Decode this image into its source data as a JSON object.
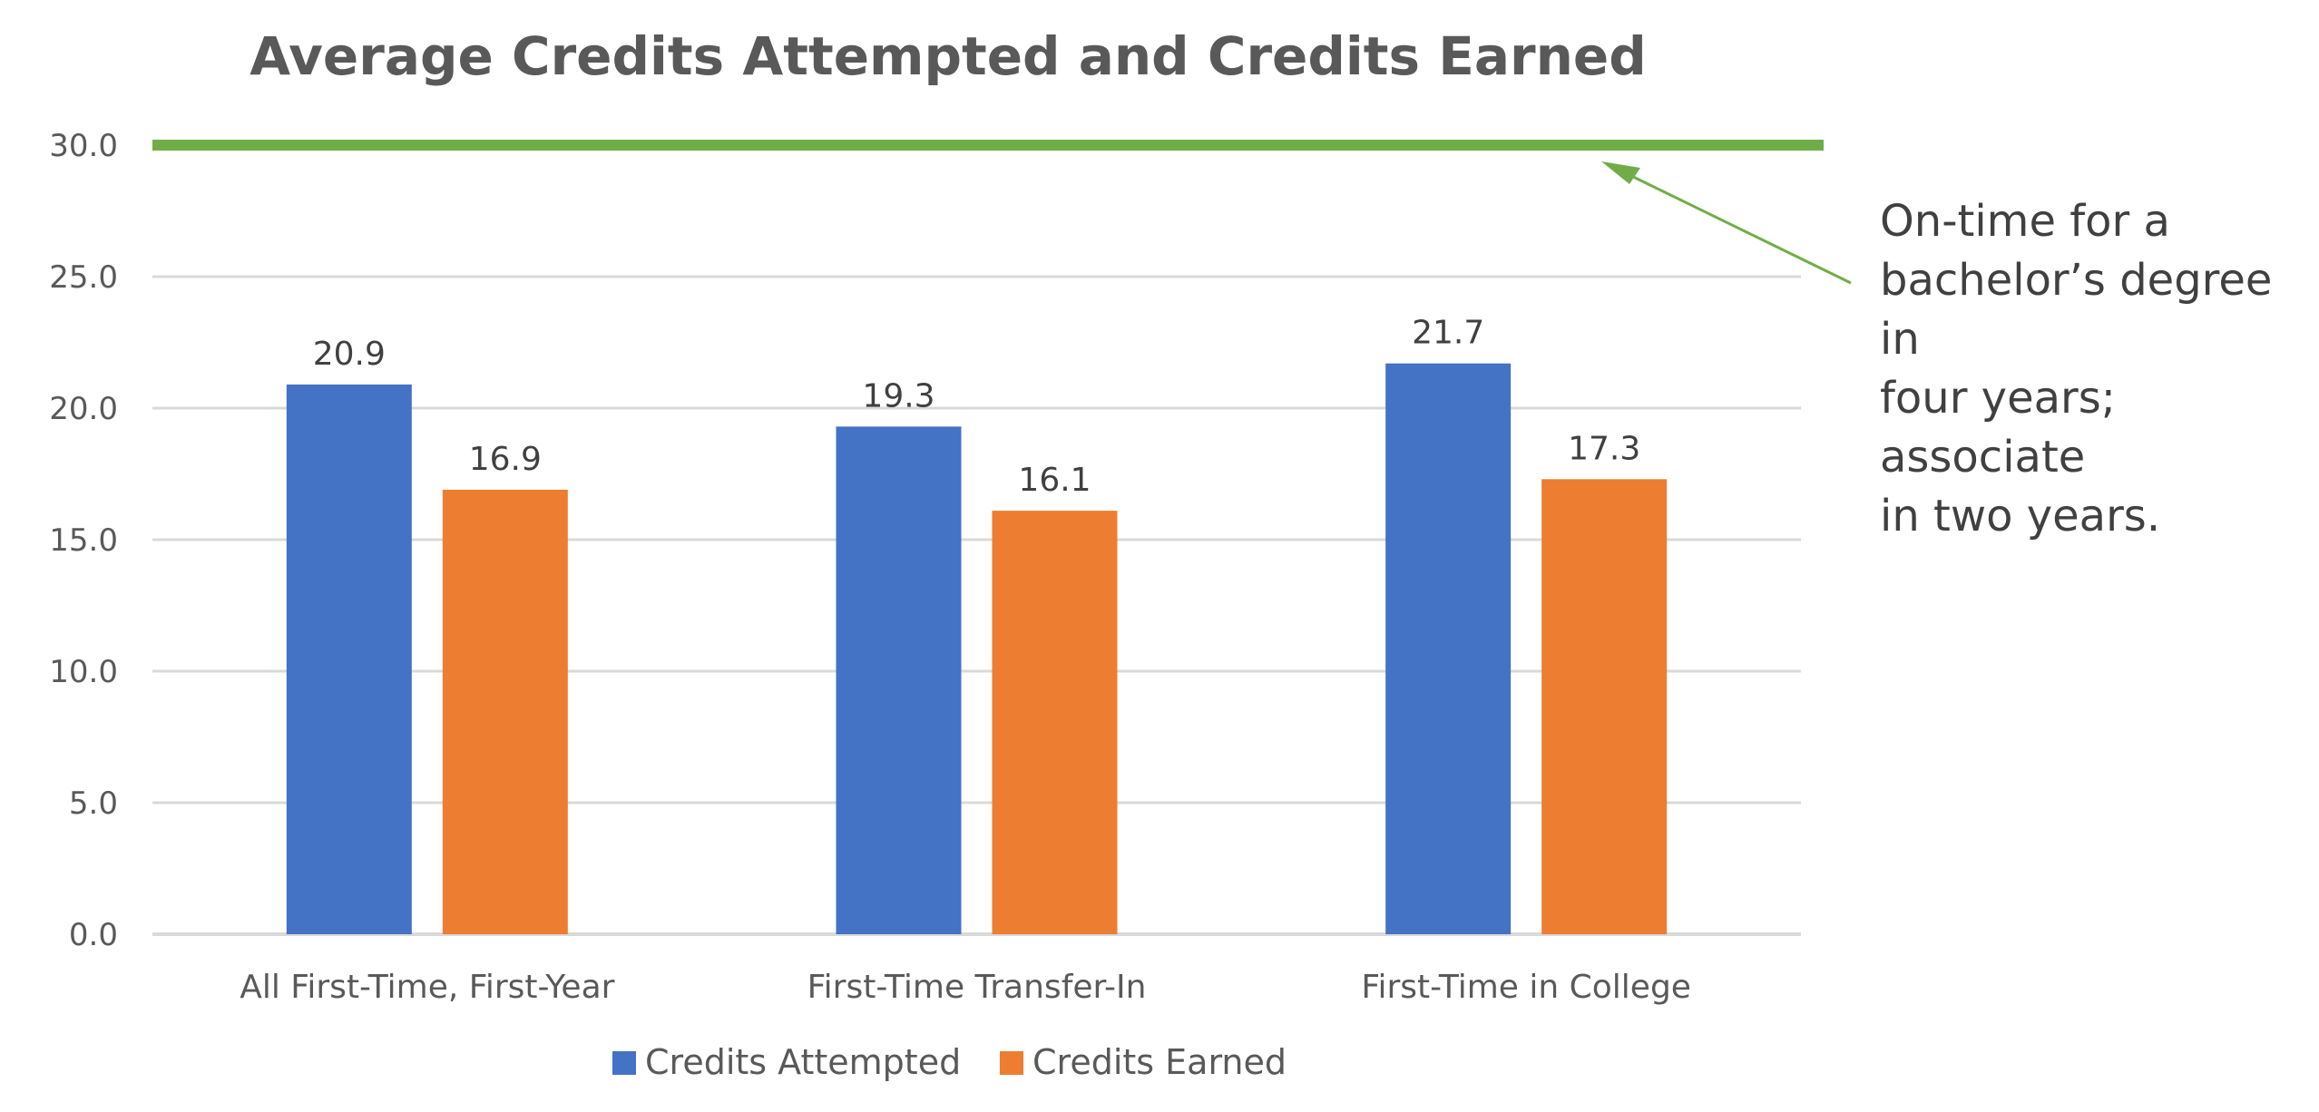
{
  "chart_data": {
    "type": "bar",
    "title": "Average Credits Attempted and Credits Earned",
    "categories": [
      "All First-Time, First-Year",
      "First-Time Transfer-In",
      "First-Time in College"
    ],
    "series": [
      {
        "name": "Credits Attempted",
        "values": [
          20.9,
          19.3,
          21.7
        ],
        "color": "#4472C4"
      },
      {
        "name": "Credits Earned",
        "values": [
          16.9,
          16.1,
          17.3
        ],
        "color": "#ED7D31"
      }
    ],
    "data_labels": {
      "Credits Attempted": [
        "20.9",
        "19.3",
        "21.7"
      ],
      "Credits Earned": [
        "16.9",
        "16.1",
        "17.3"
      ]
    },
    "ylim": [
      0,
      30
    ],
    "y_ticks": [
      "0.0",
      "5.0",
      "10.0",
      "15.0",
      "20.0",
      "25.0",
      "30.0"
    ],
    "y_tick_values": [
      0,
      5,
      10,
      15,
      20,
      25,
      30
    ],
    "grid": true,
    "legend_position": "bottom",
    "reference_line": {
      "value": 30.0,
      "color": "#70AD47"
    },
    "annotation": {
      "lines": [
        "On-time for a",
        "bachelor’s degree in",
        "four years; associate",
        "in two years."
      ],
      "arrow_color": "#70AD47"
    }
  }
}
